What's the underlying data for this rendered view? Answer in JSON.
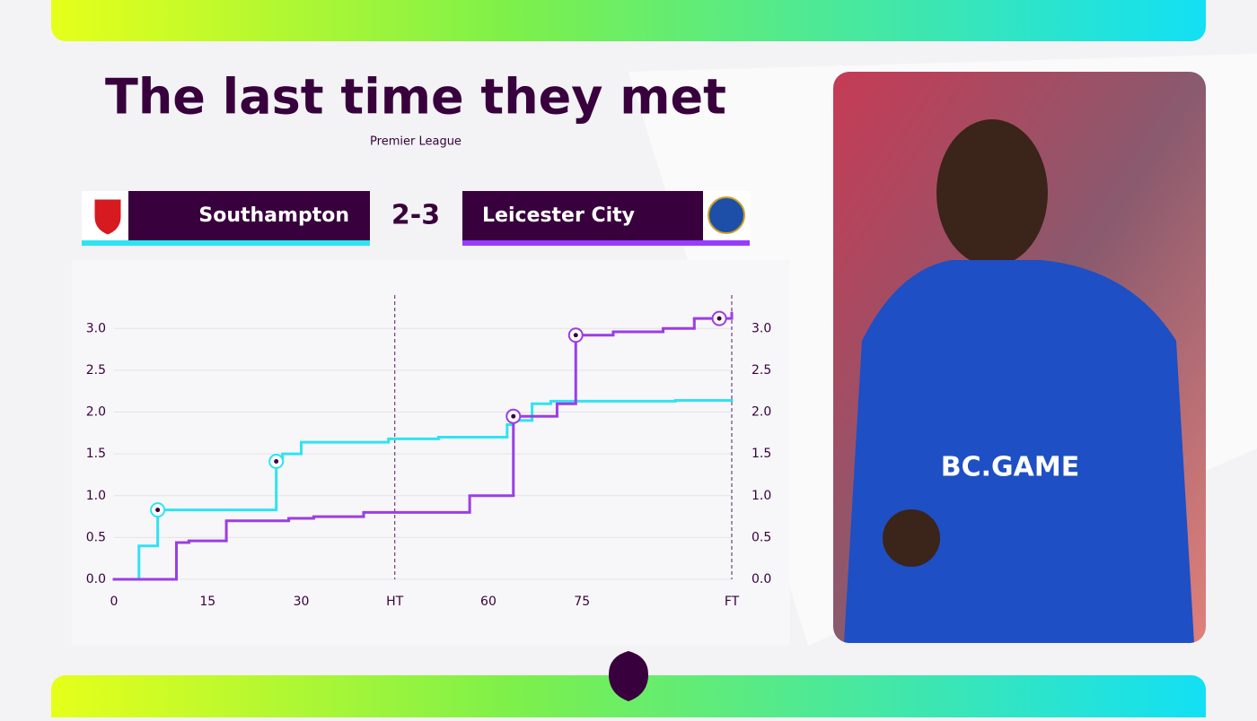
{
  "header": {
    "title": "The last time they met",
    "subtitle": "Premier League"
  },
  "match": {
    "home": "Southampton",
    "away": "Leicester City",
    "score": "2-3"
  },
  "photo": {
    "jersey_text": "BC.GAME"
  },
  "chart_data": {
    "type": "step",
    "xlim": [
      0,
      99
    ],
    "ylim": [
      0,
      3.4
    ],
    "xticks": [
      0,
      15,
      30,
      {
        "value": 45,
        "label": "HT"
      },
      60,
      75,
      {
        "value": 99,
        "label": "FT"
      }
    ],
    "yticks": [
      {
        "value": 0,
        "label": "0.0"
      },
      0.5,
      {
        "value": 1,
        "label": "1.0"
      },
      1.5,
      {
        "value": 2,
        "label": "2.0"
      },
      2.5,
      {
        "value": 3,
        "label": "3.0"
      }
    ],
    "dashed_x": [
      45,
      99
    ],
    "grid": true,
    "series": [
      {
        "name": "Southampton",
        "color": "#2fe3f2",
        "x": [
          0,
          4,
          7,
          26,
          27,
          30,
          44,
          52,
          63,
          64,
          67,
          70,
          90,
          99
        ],
        "values": [
          0,
          0.4,
          0.83,
          1.41,
          1.5,
          1.64,
          1.68,
          1.7,
          1.85,
          1.9,
          2.1,
          2.13,
          2.14,
          2.15
        ],
        "goals": [
          7,
          26
        ]
      },
      {
        "name": "Leicester City",
        "color": "#9b3de8",
        "x": [
          0,
          10,
          12,
          18,
          28,
          32,
          40,
          57,
          64,
          71,
          74,
          80,
          88,
          93,
          99
        ],
        "values": [
          0,
          0.44,
          0.46,
          0.7,
          0.73,
          0.75,
          0.8,
          1.0,
          1.95,
          2.1,
          2.92,
          2.96,
          3.0,
          3.12,
          3.2
        ],
        "goals": [
          64,
          74,
          97
        ]
      }
    ]
  }
}
